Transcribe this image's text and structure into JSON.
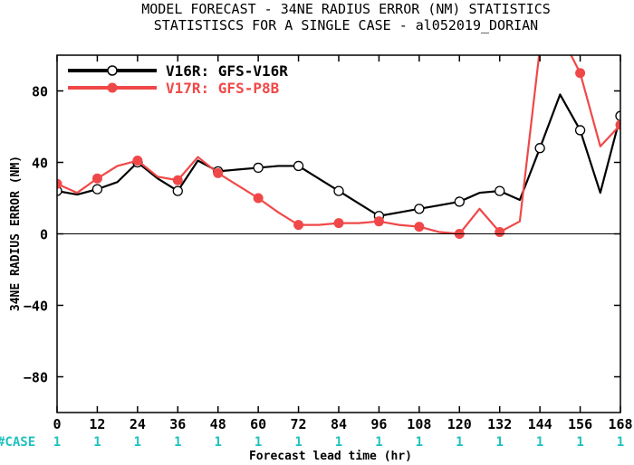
{
  "header": {
    "title_line1": "MODEL FORECAST - 34NE RADIUS ERROR (NM) STATISTICS",
    "title_line2": "STATISTISCS FOR A SINGLE CASE - al052019_DORIAN"
  },
  "case_label": "#CASE",
  "colors": {
    "series1": "#000000",
    "series2": "#f04848",
    "case_text": "#20c0c0",
    "zero_line": "#000000"
  },
  "chart_data": {
    "type": "line",
    "title": "MODEL FORECAST - 34NE RADIUS ERROR (NM) STATISTICS",
    "subtitle": "STATISTISCS FOR A SINGLE CASE - al052019_DORIAN",
    "xlabel": "Forecast lead time (hr)",
    "ylabel": "34NE RADIUS ERROR (NM)",
    "xlim": [
      0,
      168
    ],
    "ylim": [
      -100,
      100
    ],
    "xticks": [
      0,
      12,
      24,
      36,
      48,
      60,
      72,
      84,
      96,
      108,
      120,
      132,
      144,
      156,
      168
    ],
    "xtick_labels": [
      "0",
      "12",
      "24",
      "36",
      "48",
      "60",
      "72",
      "84",
      "96",
      "108",
      "120",
      "132",
      "144",
      "156",
      "168"
    ],
    "yticks": [
      -80,
      -40,
      0,
      40,
      80
    ],
    "ytick_labels": [
      "−80",
      "−40",
      "0",
      "40",
      "80"
    ],
    "case_counts": [
      "1",
      "1",
      "1",
      "1",
      "1",
      "1",
      "1",
      "1",
      "1",
      "1",
      "1",
      "1",
      "1",
      "1",
      "1"
    ],
    "legend_position": "top-left",
    "grid": false,
    "series": [
      {
        "name": "V16R: GFS-V16R",
        "color": "#000000",
        "marker": "open-circle",
        "line_x": [
          0,
          6,
          12,
          18,
          24,
          30,
          36,
          42,
          48,
          54,
          60,
          66,
          72,
          78,
          84,
          90,
          96,
          102,
          108,
          114,
          120,
          126,
          132,
          138,
          144,
          150,
          156,
          162,
          168
        ],
        "line_y": [
          24,
          22,
          25,
          29,
          40,
          31,
          24,
          41,
          35,
          36,
          37,
          38,
          38,
          31,
          24,
          17,
          10,
          12,
          14,
          16,
          18,
          23,
          24,
          19,
          48,
          78,
          58,
          23,
          66
        ],
        "marker_x": [
          0,
          12,
          24,
          36,
          48,
          60,
          72,
          84,
          96,
          108,
          120,
          132,
          144,
          156,
          168
        ],
        "marker_y": [
          24,
          25,
          40,
          24,
          35,
          37,
          38,
          24,
          10,
          14,
          18,
          24,
          48,
          58,
          66
        ]
      },
      {
        "name": "V17R: GFS-P8B",
        "color": "#f04848",
        "marker": "filled-circle",
        "line_x": [
          0,
          6,
          12,
          18,
          24,
          30,
          36,
          42,
          48,
          54,
          60,
          66,
          72,
          78,
          84,
          90,
          96,
          102,
          108,
          114,
          120,
          126,
          132,
          138,
          144,
          150,
          156,
          162,
          168
        ],
        "line_y": [
          28,
          23,
          31,
          38,
          41,
          32,
          30,
          43,
          34,
          27,
          20,
          12,
          5,
          5,
          6,
          6,
          7,
          5,
          4,
          1,
          0,
          14,
          1,
          7,
          104,
          112,
          90,
          49,
          61
        ],
        "marker_x": [
          0,
          12,
          24,
          36,
          48,
          60,
          72,
          84,
          96,
          108,
          120,
          132,
          144,
          156,
          168
        ],
        "marker_y": [
          28,
          31,
          41,
          30,
          34,
          20,
          5,
          6,
          7,
          4,
          0,
          1,
          104,
          90,
          61
        ]
      }
    ]
  }
}
